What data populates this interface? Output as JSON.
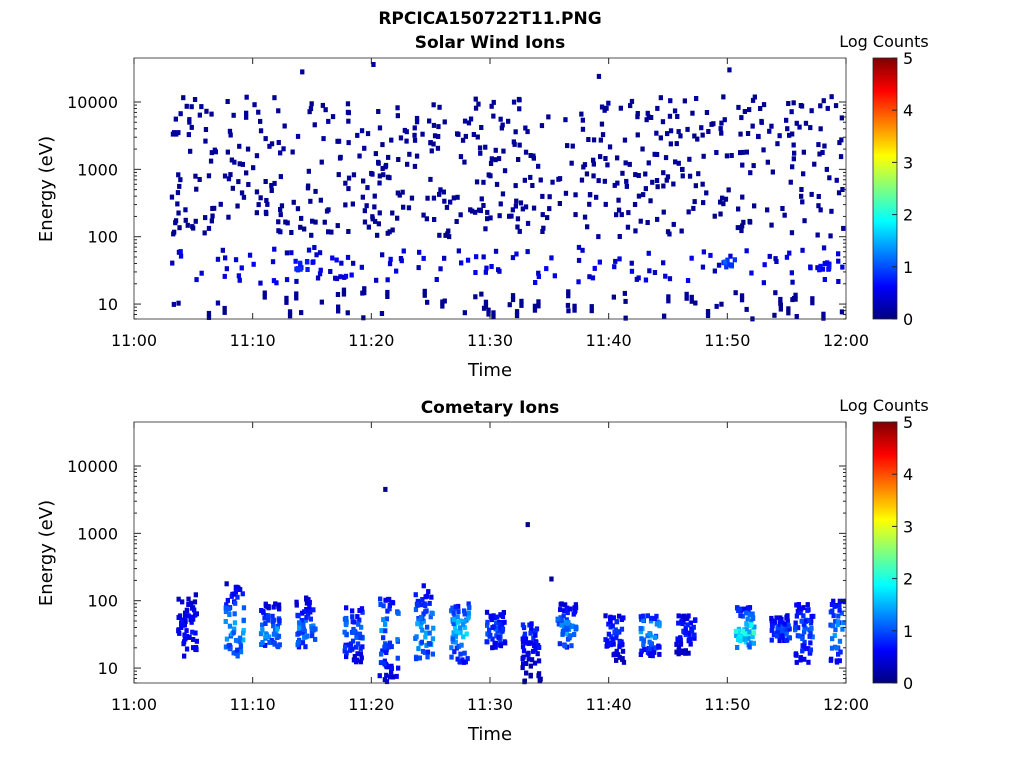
{
  "figure": {
    "title": "RPCICA150722T11.PNG"
  },
  "chart_data": [
    {
      "type": "heatmap",
      "title": "Solar Wind Ions",
      "xlabel": "Time",
      "ylabel": "Energy (eV)",
      "xlim": [
        "11:00",
        "12:00"
      ],
      "ylim": [
        6,
        45000
      ],
      "yscale": "log",
      "xticks": [
        "11:00",
        "11:10",
        "11:20",
        "11:30",
        "11:40",
        "11:50",
        "12:00"
      ],
      "yticks": [
        "10",
        "100",
        "1000",
        "10000"
      ],
      "colorbar": {
        "label": "Log Counts",
        "min": 0,
        "max": 5,
        "ticks": [
          "0",
          "1",
          "2",
          "3",
          "4",
          "5"
        ],
        "colormap": "jet"
      },
      "data_start_min": 3,
      "bands": [
        {
          "energy_range_ev": [
            100,
            12000
          ],
          "typical_log_counts": 0.1,
          "pattern": "sparse scattered single counts"
        },
        {
          "energy_range_ev": [
            20,
            70
          ],
          "typical_log_counts": 0.4,
          "pattern": "intermittent clusters"
        },
        {
          "energy_range_ev": [
            6,
            15
          ],
          "typical_log_counts": 0.1,
          "pattern": "sparse vertical streaks"
        }
      ],
      "hotspots": [
        {
          "time": "11:14",
          "energy_ev": 38,
          "log_counts": 0.9
        },
        {
          "time": "11:50",
          "energy_ev": 40,
          "log_counts": 1.1
        },
        {
          "time": "11:58",
          "energy_ev": 38,
          "log_counts": 0.7
        }
      ],
      "isolated": [
        {
          "time": "11:14",
          "energy_ev": 28000,
          "log_counts": 0.1
        },
        {
          "time": "11:20",
          "energy_ev": 36000,
          "log_counts": 0.1
        },
        {
          "time": "11:39",
          "energy_ev": 24000,
          "log_counts": 0.1
        },
        {
          "time": "11:50",
          "energy_ev": 30000,
          "log_counts": 0.1
        }
      ]
    },
    {
      "type": "heatmap",
      "title": "Cometary Ions",
      "xlabel": "Time",
      "ylabel": "Energy (eV)",
      "xlim": [
        "11:00",
        "12:00"
      ],
      "ylim": [
        6,
        45000
      ],
      "yscale": "log",
      "xticks": [
        "11:00",
        "11:10",
        "11:20",
        "11:30",
        "11:40",
        "11:50",
        "12:00"
      ],
      "yticks": [
        "10",
        "100",
        "1000",
        "10000"
      ],
      "colorbar": {
        "label": "Log Counts",
        "min": 0,
        "max": 5,
        "ticks": [
          "0",
          "1",
          "2",
          "3",
          "4",
          "5"
        ],
        "colormap": "jet"
      },
      "bursts": [
        {
          "time": "11:04",
          "energy_range_ev": [
            15,
            130
          ],
          "peak_log_counts": 0.8
        },
        {
          "time": "11:08",
          "energy_range_ev": [
            15,
            190
          ],
          "peak_log_counts": 1.6
        },
        {
          "time": "11:11",
          "energy_range_ev": [
            20,
            90
          ],
          "peak_log_counts": 1.5
        },
        {
          "time": "11:14",
          "energy_range_ev": [
            20,
            110
          ],
          "peak_log_counts": 1.4
        },
        {
          "time": "11:18",
          "energy_range_ev": [
            12,
            80
          ],
          "peak_log_counts": 1.3
        },
        {
          "time": "11:21",
          "energy_range_ev": [
            6,
            110
          ],
          "peak_log_counts": 1.4
        },
        {
          "time": "11:24",
          "energy_range_ev": [
            12,
            170
          ],
          "peak_log_counts": 1.6
        },
        {
          "time": "11:27",
          "energy_range_ev": [
            12,
            90
          ],
          "peak_log_counts": 1.8
        },
        {
          "time": "11:30",
          "energy_range_ev": [
            20,
            70
          ],
          "peak_log_counts": 1.2
        },
        {
          "time": "11:33",
          "energy_range_ev": [
            6,
            50
          ],
          "peak_log_counts": 0.9
        },
        {
          "time": "11:36",
          "energy_range_ev": [
            20,
            90
          ],
          "peak_log_counts": 1.6
        },
        {
          "time": "11:40",
          "energy_range_ev": [
            12,
            60
          ],
          "peak_log_counts": 1.0
        },
        {
          "time": "11:43",
          "energy_range_ev": [
            15,
            60
          ],
          "peak_log_counts": 1.7
        },
        {
          "time": "11:46",
          "energy_range_ev": [
            15,
            60
          ],
          "peak_log_counts": 0.9
        },
        {
          "time": "11:51",
          "energy_range_ev": [
            20,
            80
          ],
          "peak_log_counts": 2.2
        },
        {
          "time": "11:54",
          "energy_range_ev": [
            25,
            60
          ],
          "peak_log_counts": 1.2
        },
        {
          "time": "11:56",
          "energy_range_ev": [
            12,
            90
          ],
          "peak_log_counts": 1.2
        },
        {
          "time": "11:59",
          "energy_range_ev": [
            12,
            100
          ],
          "peak_log_counts": 1.5
        }
      ],
      "isolated": [
        {
          "time": "11:21",
          "energy_ev": 4500,
          "log_counts": 0.1
        },
        {
          "time": "11:33",
          "energy_ev": 1350,
          "log_counts": 0.1
        },
        {
          "time": "11:35",
          "energy_ev": 210,
          "log_counts": 0.1
        }
      ]
    }
  ]
}
